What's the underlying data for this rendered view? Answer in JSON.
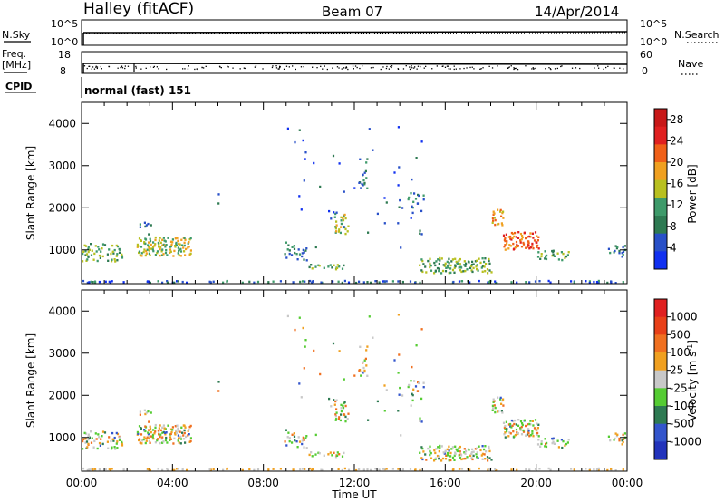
{
  "header": {
    "station": "Halley (fitACF)",
    "beam": "Beam 07",
    "date": "14/Apr/2014"
  },
  "top_panels": {
    "nsky_label": "N.Sky",
    "nsearch_label": "N.Search",
    "noise_ticks": [
      "10^5",
      "10^0"
    ],
    "freq_label_1": "Freq.",
    "freq_label_2": "[MHz]",
    "freq_ticks": [
      "18",
      "8"
    ],
    "nave_label": "Nave",
    "nave_ticks": [
      "60",
      "0"
    ],
    "cpid_label": "CPID",
    "cpid_value": "normal (fast) 151"
  },
  "colors": {
    "power_scale": [
      "#1030f0",
      "#2850c8",
      "#2e7a52",
      "#3e9a6a",
      "#b8c020",
      "#f0a020",
      "#f06018",
      "#e02020",
      "#c81818"
    ],
    "velocity_scale": [
      "#2233bb",
      "#3355cc",
      "#2e7a52",
      "#55cc33",
      "#c8c8c8",
      "#f0a020",
      "#f07020",
      "#e84018",
      "#e02020"
    ]
  },
  "chart_data": [
    {
      "type": "heatmap",
      "name": "power",
      "ylabel": "Slant Range [km]",
      "xlabel": "",
      "x_ticks": [
        "00:00",
        "04:00",
        "08:00",
        "12:00",
        "16:00",
        "20:00",
        "00:00"
      ],
      "y_ticks": [
        1000,
        2000,
        3000,
        4000
      ],
      "ylim": [
        200,
        4500
      ],
      "xlim_hours": [
        0,
        24
      ],
      "colorbar_label": "Power [dB]",
      "colorbar_ticks": [
        "28",
        "24",
        "20",
        "16",
        "12",
        "8",
        "4"
      ],
      "colorbar_range": [
        0,
        30
      ]
    },
    {
      "type": "heatmap",
      "name": "velocity",
      "ylabel": "Slant Range [km]",
      "xlabel": "Time UT",
      "x_ticks": [
        "00:00",
        "04:00",
        "08:00",
        "12:00",
        "16:00",
        "20:00",
        "00:00"
      ],
      "y_ticks": [
        1000,
        2000,
        3000,
        4000
      ],
      "ylim": [
        200,
        4500
      ],
      "xlim_hours": [
        0,
        24
      ],
      "colorbar_label": "Velocity [m s",
      "colorbar_label_sup": "-1",
      "colorbar_label_end": "]",
      "colorbar_ticks": [
        "1000",
        "500",
        "100",
        "25",
        "-25",
        "-100",
        "-500",
        "-1000"
      ]
    }
  ]
}
